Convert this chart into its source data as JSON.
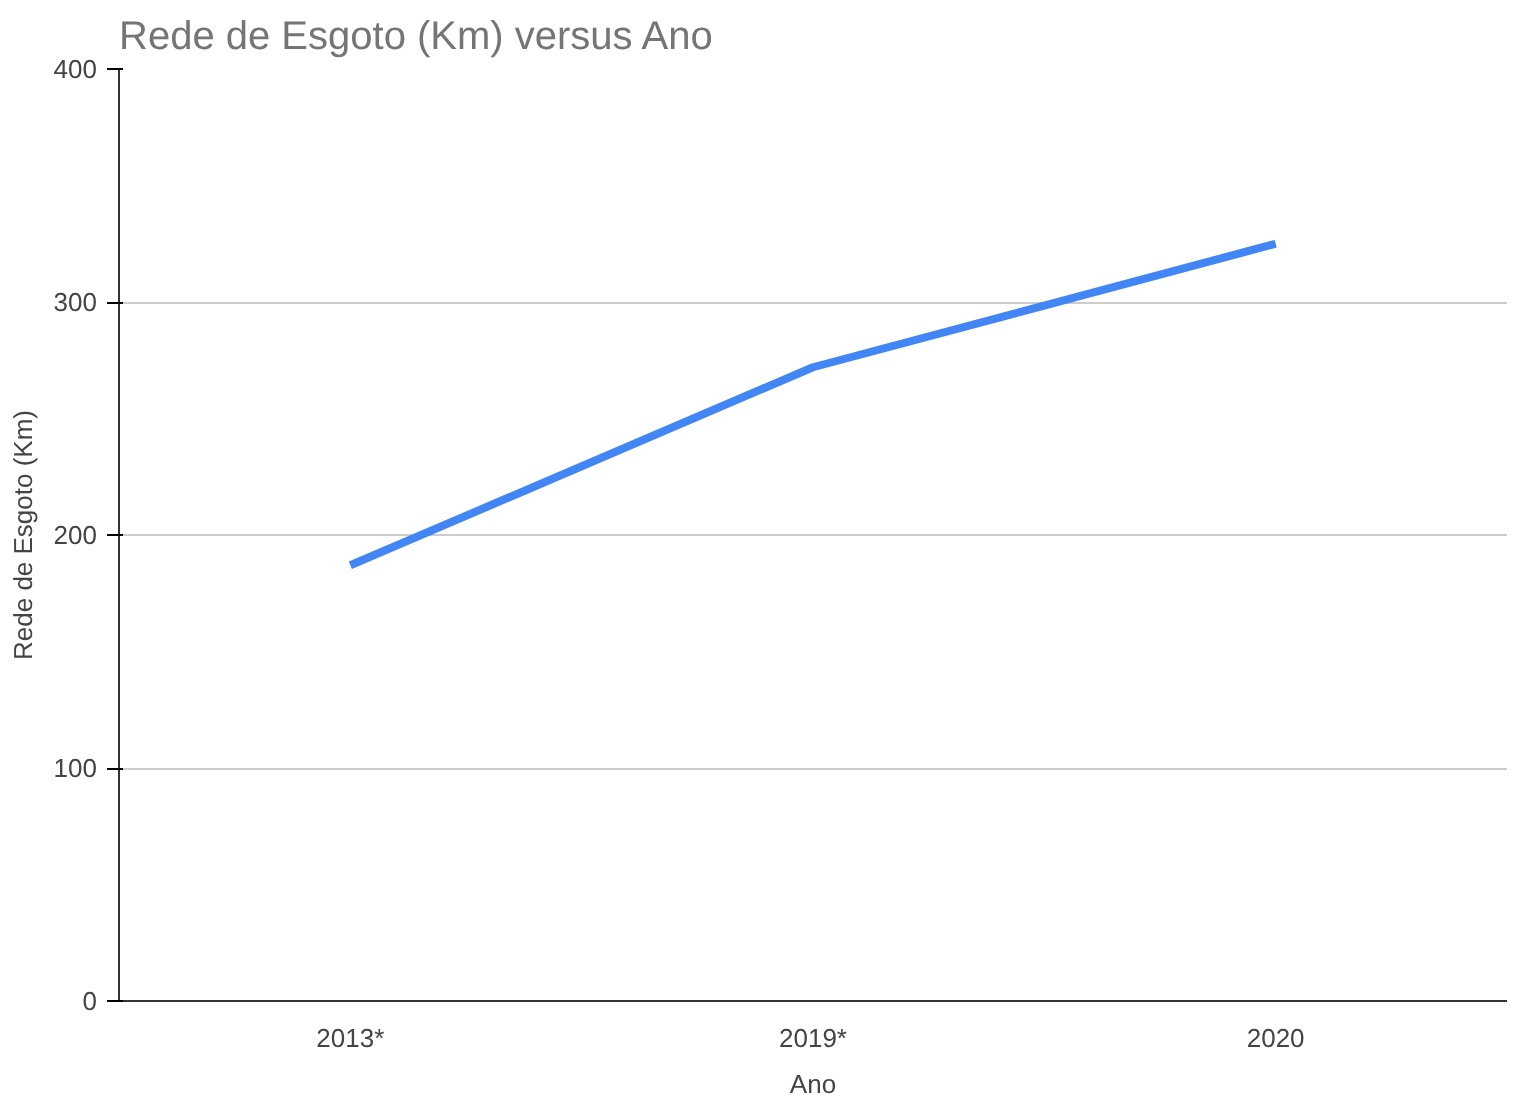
{
  "chart_data": {
    "type": "line",
    "title": "Rede de Esgoto (Km) versus Ano",
    "xlabel": "Ano",
    "ylabel": "Rede de Esgoto (Km)",
    "categories": [
      "2013*",
      "2019*",
      "2020"
    ],
    "series": [
      {
        "color": "#4285f4",
        "values": [
          187,
          272,
          325
        ]
      }
    ],
    "ylim": [
      0,
      400
    ],
    "yticks": [
      0,
      100,
      200,
      300,
      400
    ],
    "grid": "y",
    "marker": "none",
    "line_style": "solid"
  }
}
